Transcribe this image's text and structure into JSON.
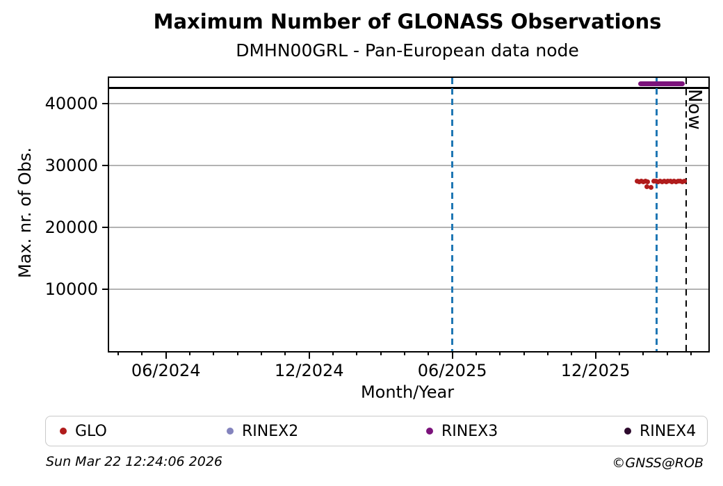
{
  "figure": {
    "title": "Maximum Number of GLONASS Observations",
    "subtitle": "DMHN00GRL - Pan-European data node",
    "timestamp": "Sun Mar 22 12:24:06 2026",
    "credit": "©GNSS@ROB"
  },
  "legend": {
    "items": [
      {
        "label": "GLO",
        "color": "#b01c1c"
      },
      {
        "label": "RINEX2",
        "color": "#8383bd"
      },
      {
        "label": "RINEX3",
        "color": "#7b127b"
      },
      {
        "label": "RINEX4",
        "color": "#2d0a2d"
      }
    ]
  },
  "chart_data": {
    "type": "scatter",
    "title": "Maximum Number of GLONASS Observations",
    "subtitle": "DMHN00GRL - Pan-European data node",
    "xlabel": "Month/Year",
    "ylabel": "Max. nr. of Obs.",
    "x_unit": "months since 2024-01-01",
    "xlim": [
      2.62,
      27.73
    ],
    "ylim": [
      0,
      44150
    ],
    "yticks": [
      10000,
      20000,
      30000,
      40000
    ],
    "xticks_major": [
      {
        "x": 5,
        "label": "06/2024"
      },
      {
        "x": 11,
        "label": "12/2024"
      },
      {
        "x": 17,
        "label": "06/2025"
      },
      {
        "x": 23,
        "label": "12/2025"
      }
    ],
    "xticks_minor_interval": 1,
    "grid": {
      "axis": "y",
      "color": "#b3b3b3"
    },
    "hline_max_obs": {
      "y": 42500,
      "color": "#000000",
      "style": "solid"
    },
    "vlines": [
      {
        "x": 17.0,
        "color": "#1f77b4",
        "style": "dashed",
        "label": ""
      },
      {
        "x": 25.56,
        "color": "#1f77b4",
        "style": "dashed",
        "label": ""
      },
      {
        "x": 26.81,
        "color": "#000000",
        "style": "dashed",
        "label": "Now"
      }
    ],
    "series": [
      {
        "name": "GLO",
        "color": "#b01c1c",
        "marker": "circle",
        "points": [
          [
            24.75,
            27450
          ],
          [
            24.84,
            27410
          ],
          [
            24.93,
            27440
          ],
          [
            25.01,
            27400
          ],
          [
            25.1,
            27430
          ],
          [
            25.19,
            27380
          ],
          [
            25.15,
            26560
          ],
          [
            25.33,
            26430
          ],
          [
            25.45,
            27420
          ],
          [
            25.53,
            27450
          ],
          [
            25.62,
            27400
          ],
          [
            25.7,
            27430
          ],
          [
            25.79,
            27410
          ],
          [
            25.87,
            27440
          ],
          [
            25.96,
            27400
          ],
          [
            26.04,
            27420
          ],
          [
            26.13,
            27450
          ],
          [
            26.21,
            27410
          ],
          [
            26.3,
            27430
          ],
          [
            26.38,
            27400
          ],
          [
            26.47,
            27440
          ],
          [
            26.55,
            27420
          ],
          [
            26.64,
            27410
          ],
          [
            26.72,
            27430
          ]
        ]
      },
      {
        "name": "RINEX2",
        "color": "#8383bd",
        "marker": "circle",
        "points": []
      },
      {
        "name": "RINEX3",
        "color": "#7b127b",
        "marker": "circle",
        "points": [],
        "segments": [
          {
            "x1": 24.78,
            "x2": 26.75,
            "y": 43200
          }
        ]
      },
      {
        "name": "RINEX4",
        "color": "#2d0a2d",
        "marker": "circle",
        "points": []
      }
    ]
  }
}
